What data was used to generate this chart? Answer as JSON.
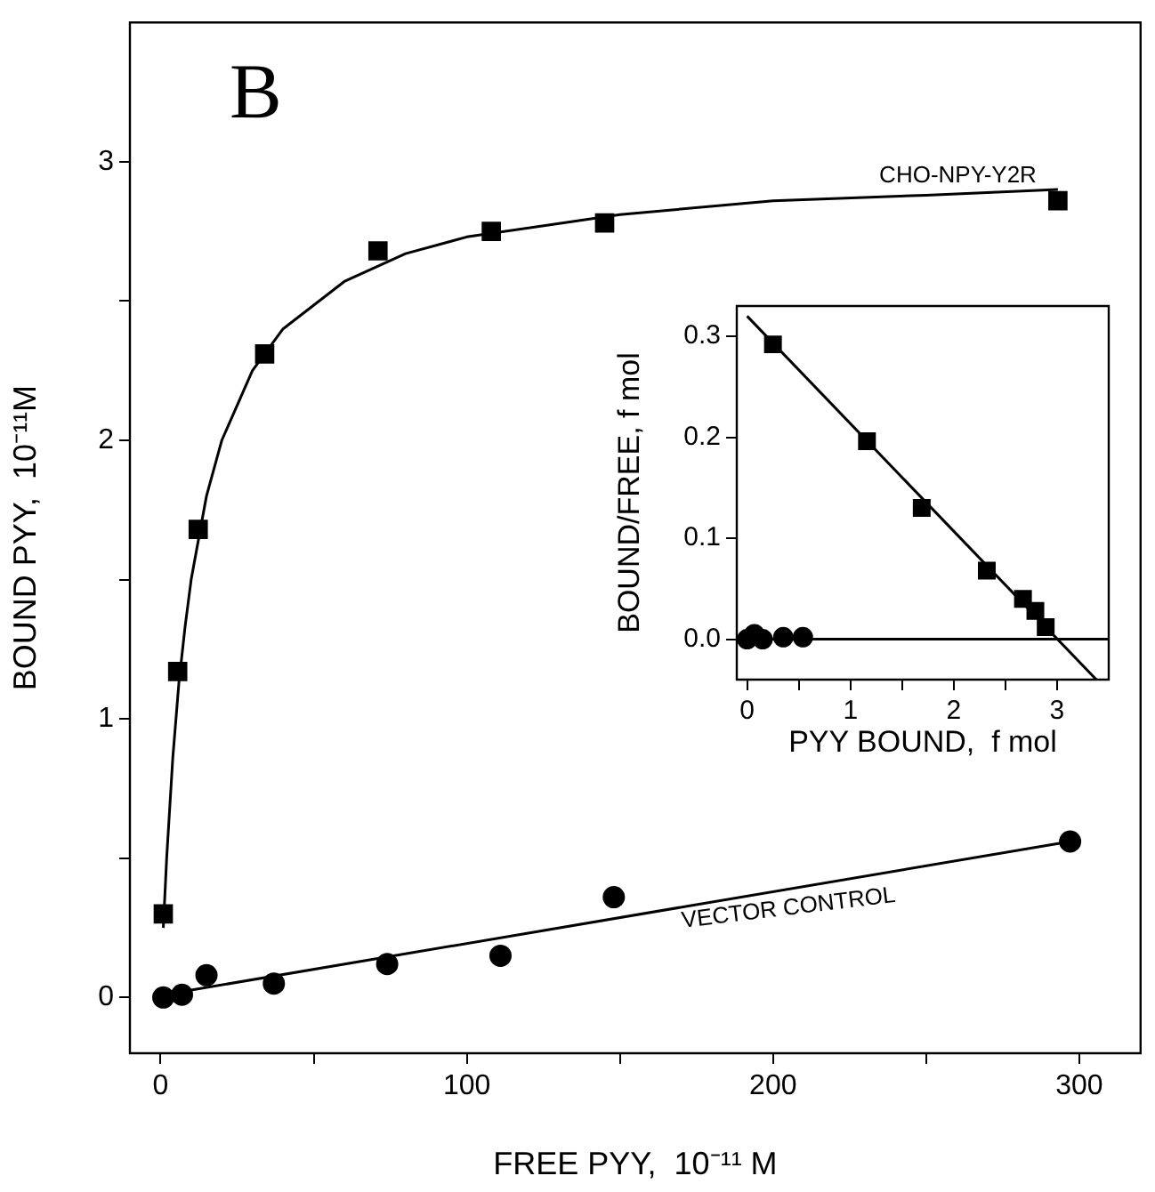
{
  "chart_data": [
    {
      "type": "scatter",
      "xlabel": "FREE PYY,  10⁻¹¹ M",
      "ylabel": "BOUND PYY,  10⁻¹¹M",
      "annotations": [
        "B"
      ],
      "xlim": [
        -10,
        320
      ],
      "xticks": [
        0,
        {
          "value": 50,
          "label": null
        },
        100,
        {
          "value": 150,
          "label": null
        },
        200,
        {
          "value": 250,
          "label": null
        },
        300
      ],
      "ylim": [
        -0.2,
        3.5
      ],
      "yticks": [
        0,
        {
          "value": 0.5,
          "label": null
        },
        1,
        {
          "value": 1.5,
          "label": null
        },
        2,
        {
          "value": 2.5,
          "label": null
        },
        3
      ],
      "grid": false,
      "legend": false,
      "series": [
        {
          "name": "CHO-NPY-Y2R",
          "marker": "square",
          "color": "#000000",
          "x": [
            0.9,
            5.6,
            12.3,
            34,
            71,
            108,
            145,
            293
          ],
          "values": [
            0.3,
            1.17,
            1.68,
            2.31,
            2.68,
            2.75,
            2.78,
            2.86
          ]
        },
        {
          "name": "VECTOR CONTROL",
          "marker": "circle",
          "color": "#000000",
          "x": [
            0.9,
            7,
            15,
            37,
            74,
            111,
            148,
            297
          ],
          "values": [
            0,
            0.01,
            0.08,
            0.05,
            0.12,
            0.15,
            0.36,
            0.56
          ]
        },
        {
          "type": "line",
          "marker": "none",
          "line_style": "solid",
          "color": "#000000",
          "x": [
            0.9,
            2,
            4,
            6,
            8,
            10,
            15,
            20,
            30,
            40,
            60,
            80,
            100,
            150,
            200,
            250,
            293
          ],
          "values": [
            0.25,
            0.5,
            0.86,
            1.13,
            1.33,
            1.5,
            1.8,
            2.0,
            2.25,
            2.4,
            2.57,
            2.67,
            2.73,
            2.81,
            2.86,
            2.88,
            2.9
          ]
        },
        {
          "type": "line",
          "marker": "none",
          "line_style": "solid",
          "color": "#000000",
          "x": [
            1,
            297
          ],
          "values": [
            0.01,
            0.56
          ]
        }
      ]
    },
    {
      "type": "scatter",
      "xlabel": "PYY BOUND,  f mol",
      "ylabel": "BOUND/FREE, f mol",
      "xlim": [
        -0.1,
        3.5
      ],
      "xticks": [
        0,
        {
          "value": 0.5,
          "label": null
        },
        1,
        {
          "value": 1.5,
          "label": null
        },
        2,
        {
          "value": 2.5,
          "label": null
        },
        3
      ],
      "ylim": [
        -0.04,
        0.33
      ],
      "yticks": [
        {
          "value": 0,
          "label": "0.0"
        },
        0.1,
        0.2,
        0.3
      ],
      "grid": false,
      "legend": false,
      "series": [
        {
          "marker": "square",
          "color": "#000000",
          "x": [
            0.25,
            1.16,
            1.69,
            2.32,
            2.67,
            2.79,
            2.89
          ],
          "values": [
            0.292,
            0.196,
            0.13,
            0.068,
            0.04,
            0.028,
            0.012
          ]
        },
        {
          "marker": "circle",
          "color": "#000000",
          "x": [
            0,
            0.07,
            0.15,
            0.35,
            0.54
          ],
          "values": [
            0,
            0.005,
            0,
            0.002,
            0.002
          ]
        },
        {
          "type": "line",
          "marker": "none",
          "line_style": "solid",
          "color": "#000000",
          "x": [
            0,
            3.38
          ],
          "values": [
            0.32,
            -0.04
          ]
        },
        {
          "type": "line",
          "marker": "none",
          "line_style": "solid",
          "color": "#000000",
          "x": [
            0,
            3.5
          ],
          "values": [
            0,
            0
          ]
        }
      ]
    }
  ]
}
